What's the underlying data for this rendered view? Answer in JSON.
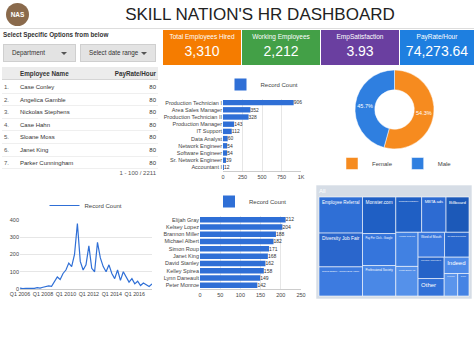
{
  "header": {
    "logo": "NAS",
    "title": "SKILL NATION'S HR DASHBOARD"
  },
  "filters": {
    "title": "Select Specific Options from below",
    "dropdowns": [
      "Department",
      "Select date range"
    ]
  },
  "kpis": [
    {
      "label": "Total Employees Hired",
      "value": "3,310",
      "color": "#f57c00"
    },
    {
      "label": "Working Employees",
      "value": "2,212",
      "color": "#43a047"
    },
    {
      "label": "EmpSatisfaction",
      "value": "3.93",
      "color": "#6a3fa0"
    },
    {
      "label": "PayRate/Hour",
      "value": "74,273.64",
      "color": "#1e7fe0"
    }
  ],
  "table": {
    "columns": [
      "Employee Name",
      "PayRate/Hour"
    ],
    "rows": [
      [
        "1.",
        "Case Conley",
        80
      ],
      [
        "2.",
        "Angelica Gamble",
        80
      ],
      [
        "3.",
        "Nickolas Stephens",
        80
      ],
      [
        "4.",
        "Case Hahn",
        80
      ],
      [
        "5.",
        "Sloane Moss",
        80
      ],
      [
        "6.",
        "Janet King",
        80
      ],
      [
        "7.",
        "Parker Cunningham",
        80
      ]
    ],
    "pagination": "1 - 100 / 2211"
  },
  "chart_data": [
    {
      "type": "bar",
      "orientation": "horizontal",
      "categories": [
        "Production Technician I",
        "Area Sales Manager",
        "Production Technician II",
        "Production Manager",
        "IT Support",
        "Data Analyst",
        "Network Engineer",
        "Software Engineer",
        "Sr. Network Engineer",
        "Accountant I"
      ],
      "series": [
        {
          "name": "Record Count",
          "color": "#2f6fd6",
          "values": [
            906,
            352,
            328,
            143,
            112,
            60,
            54,
            54,
            39,
            12
          ]
        }
      ],
      "xlim": [
        0,
        1000
      ],
      "xticks": [
        0,
        250,
        500,
        750,
        {
          "value": 1000,
          "label": "1K"
        }
      ],
      "grid": true,
      "legend": "top",
      "data_labels": true
    },
    {
      "type": "pie",
      "categories": [
        "Female",
        "Male"
      ],
      "values": [
        54.3,
        45.7
      ],
      "value_labels": [
        "54.3%",
        "45.7%"
      ],
      "colors": [
        "#f68b1f",
        "#2f7fe0"
      ],
      "legend": "bottom",
      "data_labels": true
    },
    {
      "type": "line",
      "categories": [
        "Q1 2006",
        null,
        null,
        null,
        null,
        null,
        null,
        null,
        "Q1 2008",
        null,
        null,
        null,
        null,
        null,
        null,
        null,
        "Q1 2010",
        null,
        null,
        null,
        null,
        null,
        null,
        null,
        "Q1 2012",
        null,
        null,
        null,
        null,
        null,
        null,
        null,
        "Q1 2014",
        null,
        null,
        null,
        null,
        null,
        null,
        null,
        "Q1 2016",
        null,
        null,
        null,
        null,
        null,
        null
      ],
      "series": [
        {
          "name": "Record Count",
          "color": "#2f6fd6",
          "values": [
            5,
            2,
            4,
            3,
            6,
            4,
            8,
            5,
            10,
            12,
            18,
            15,
            40,
            70,
            55,
            90,
            110,
            150,
            130,
            200,
            380,
            160,
            110,
            140,
            250,
            120,
            100,
            270,
            180,
            130,
            100,
            140,
            90,
            60,
            110,
            50,
            100,
            70,
            40,
            60,
            30,
            45,
            20,
            35,
            25,
            15,
            30
          ]
        }
      ],
      "ylim": [
        0,
        400
      ],
      "yticks": [
        0,
        100,
        200,
        300,
        400
      ],
      "grid": true,
      "legend": "top"
    },
    {
      "type": "bar",
      "orientation": "horizontal",
      "categories": [
        "Elijah Gray",
        "Kelsey Lopez",
        "Brannon Miller",
        "Michael Albert",
        "Simon Roup",
        "Janet King",
        "David Stanley",
        "Kelley Spirea",
        "Lynn Daneault",
        "Peter Monroe"
      ],
      "series": [
        {
          "name": "Record Count",
          "color": "#2f6fd6",
          "values": [
            212,
            204,
            188,
            182,
            171,
            168,
            162,
            158,
            149,
            142
          ]
        }
      ],
      "xlim": [
        0,
        250
      ],
      "xticks": [
        0,
        50,
        100,
        150,
        200,
        250
      ],
      "grid": true,
      "legend": "top",
      "data_labels": true
    },
    {
      "type": "treemap",
      "root": "All",
      "categories": [
        "Employee Referral",
        "Search Engine - Google Bing Yahoo",
        "Monster.com",
        "Professional Society",
        "Diversity Job Fair",
        "Pay Per Click - Google",
        "Billboard",
        "Vendor Referral",
        "MBTA ads",
        "Website Banner Ads",
        "Word of Mouth",
        "Social Networks - Facebook Twitter etc",
        "Indeed",
        "Newspager/Magazine",
        "On-line Web application",
        "Other",
        "Careerbuilder",
        "On-campus Recruiting"
      ],
      "values": [
        31,
        25,
        24,
        20,
        29,
        21,
        16,
        15,
        17,
        13,
        13,
        11,
        8,
        18,
        6,
        9,
        5,
        12
      ],
      "colors": [
        "#2f6fd6",
        "#3d7be0",
        "#1f5fc4",
        "#4a88e6",
        "#2a66cc",
        "#3575dc",
        "#1c59b8",
        "#4181e2",
        "#2d6bd2",
        "#5591ea",
        "#3a78de",
        "#2563c8",
        "#4d8ae8",
        "#1f5fc4",
        "#5b95ec",
        "#3271d8",
        "#4583e4",
        "#2866cc"
      ]
    }
  ]
}
